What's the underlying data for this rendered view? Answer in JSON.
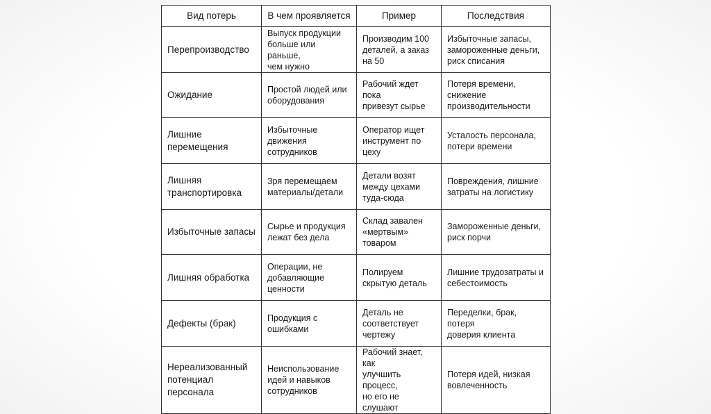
{
  "table": {
    "headers": [
      "Вид потерь",
      "В чем проявляется",
      "Пример",
      "Последствия"
    ],
    "rows": [
      [
        "Перепроизводство",
        "Выпуск продукции\nбольше или раньше,\nчем нужно",
        "Производим 100\nдеталей, а заказ\nна 50",
        "Избыточные запасы,\nзамороженные деньги,\nриск списания"
      ],
      [
        "Ожидание",
        "Простой людей или\nоборудования",
        "Рабочий ждет пока\nпривезут сырье",
        "Потеря времени,\nснижение\nпроизводительности"
      ],
      [
        "Лишние\nперемещения",
        "Избыточные\nдвижения\nсотрудников",
        "Оператор ищет\nинструмент по\nцеху",
        "Усталость персонала,\nпотери времени"
      ],
      [
        "Лишняя\nтранспортировка",
        "Зря перемещаем\nматериалы/детали",
        "Детали возят\nмежду цехами\nтуда-сюда",
        "Повреждения, лишние\nзатраты на логистику"
      ],
      [
        "Избыточные запасы",
        "Сырье и продукция\nлежат без дела",
        "Склад завален\n«мертвым»\nтоваром",
        "Замороженные деньги,\nриск порчи"
      ],
      [
        "Лишняя обработка",
        "Операции, не\nдобавляющие\nценности",
        "Полируем\nскрытую деталь",
        "Лишние трудозатраты и\nсебестоимость"
      ],
      [
        "Дефекты (брак)",
        "Продукция с\nошибками",
        "Деталь не\nсоответствует\nчертежу",
        "Переделки, брак, потеря\nдоверия клиента"
      ],
      [
        "Нереализованный\nпотенциал\nперсонала",
        "Неиспользование\nидей и навыков\nсотрудников",
        "Рабочий знает, как\nулучшить процесс,\nно его не слушают",
        "Потеря идей, низкая\nвовлеченность"
      ]
    ]
  }
}
